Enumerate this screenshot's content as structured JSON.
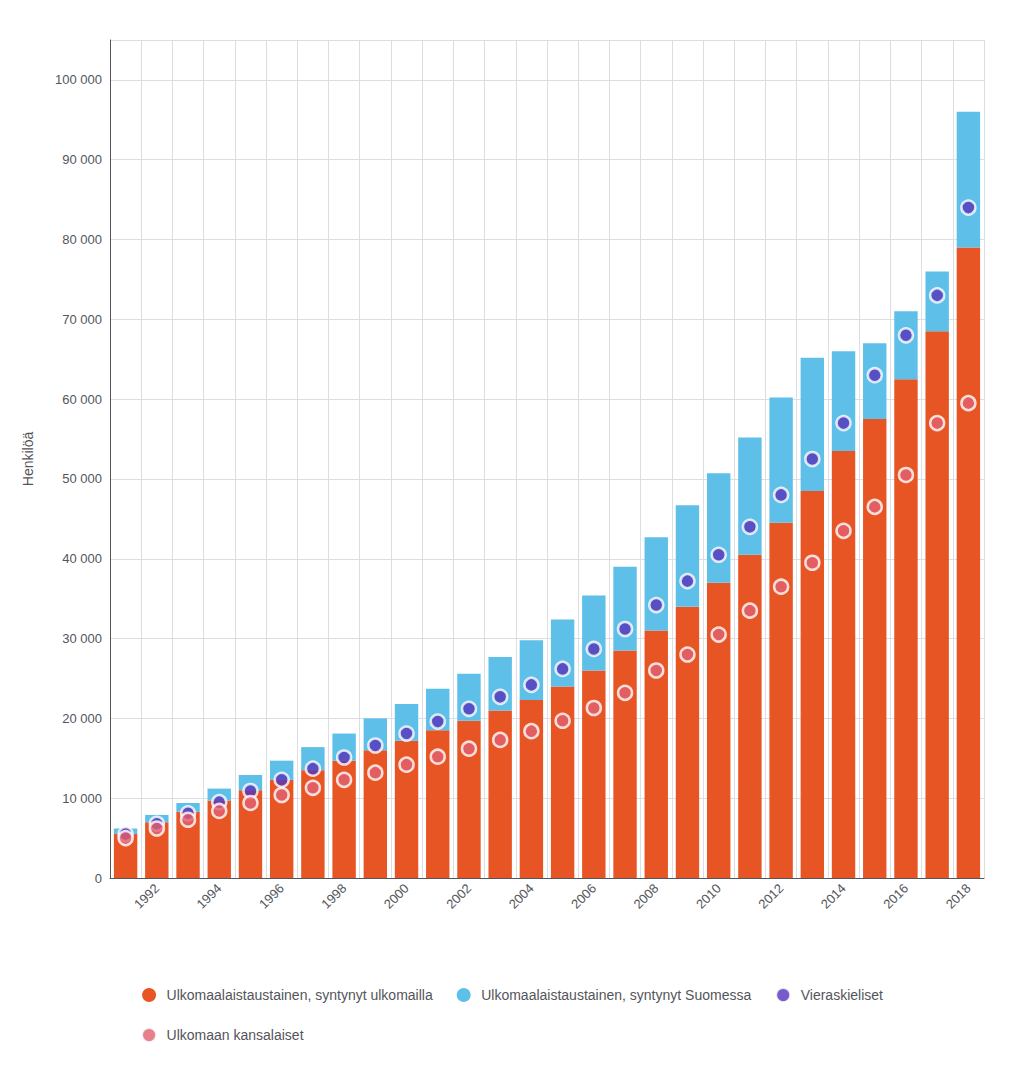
{
  "chart_data": {
    "type": "bar",
    "categories": [
      null,
      1992,
      null,
      1994,
      null,
      1996,
      null,
      1998,
      null,
      2000,
      null,
      2002,
      null,
      2004,
      null,
      2006,
      null,
      2008,
      null,
      2010,
      null,
      2012,
      null,
      2014,
      null,
      2016,
      null,
      2018
    ],
    "ylabel": "Henkilöä",
    "ylim": [
      0,
      105000
    ],
    "yticks": [
      0,
      {
        "value": 10000,
        "label": "10 000"
      },
      {
        "value": 20000,
        "label": "20 000"
      },
      {
        "value": 30000,
        "label": "30 000"
      },
      {
        "value": 40000,
        "label": "40 000"
      },
      {
        "value": 50000,
        "label": "50 000"
      },
      {
        "value": 60000,
        "label": "60 000"
      },
      {
        "value": 70000,
        "label": "70 000"
      },
      {
        "value": 80000,
        "label": "80 000"
      },
      {
        "value": 90000,
        "label": "90 000"
      },
      {
        "value": 100000,
        "label": "100 000"
      }
    ],
    "grid": true,
    "stacked": true,
    "legend": "bottom",
    "series": [
      {
        "name": "Ulkomaalaistaustainen, syntynyt ulkomailla",
        "type": "bar",
        "color": "#E85525",
        "values": [
          5500,
          7000,
          8300,
          9700,
          11000,
          12300,
          13500,
          14700,
          16000,
          17200,
          18500,
          19700,
          21000,
          22300,
          24000,
          26000,
          28500,
          31000,
          34000,
          37000,
          40500,
          44500,
          48500,
          53500,
          57500,
          62500,
          68500,
          79000
        ]
      },
      {
        "name": "Ulkomaalaistaustainen, syntynyt Suomessa",
        "type": "bar",
        "color": "#5EC0E8",
        "values": [
          700,
          900,
          1100,
          1500,
          1900,
          2400,
          2900,
          3400,
          4000,
          4600,
          5200,
          5900,
          6700,
          7500,
          8400,
          9400,
          10500,
          11700,
          12700,
          13700,
          14700,
          15700,
          16700,
          12500,
          9500,
          8500,
          7500,
          17000
        ]
      },
      {
        "name": "Vieraskieliset",
        "type": "scatter",
        "marker": "circle",
        "color": "#5533BB",
        "values": [
          5500,
          6800,
          8100,
          9500,
          10900,
          12300,
          13700,
          15100,
          16600,
          18100,
          19600,
          21200,
          22700,
          24200,
          26200,
          28700,
          31200,
          34200,
          37200,
          40500,
          44000,
          48000,
          52500,
          57000,
          63000,
          68000,
          73000,
          84000
        ]
      },
      {
        "name": "Ulkomaan kansalaiset",
        "type": "scatter",
        "marker": "circle",
        "color": "#E06070",
        "values": [
          5000,
          6200,
          7300,
          8400,
          9400,
          10400,
          11300,
          12300,
          13200,
          14200,
          15200,
          16200,
          17300,
          18400,
          19700,
          21300,
          23200,
          26000,
          28000,
          30500,
          33500,
          36500,
          39500,
          43500,
          46500,
          50500,
          57000,
          59500
        ]
      }
    ]
  }
}
